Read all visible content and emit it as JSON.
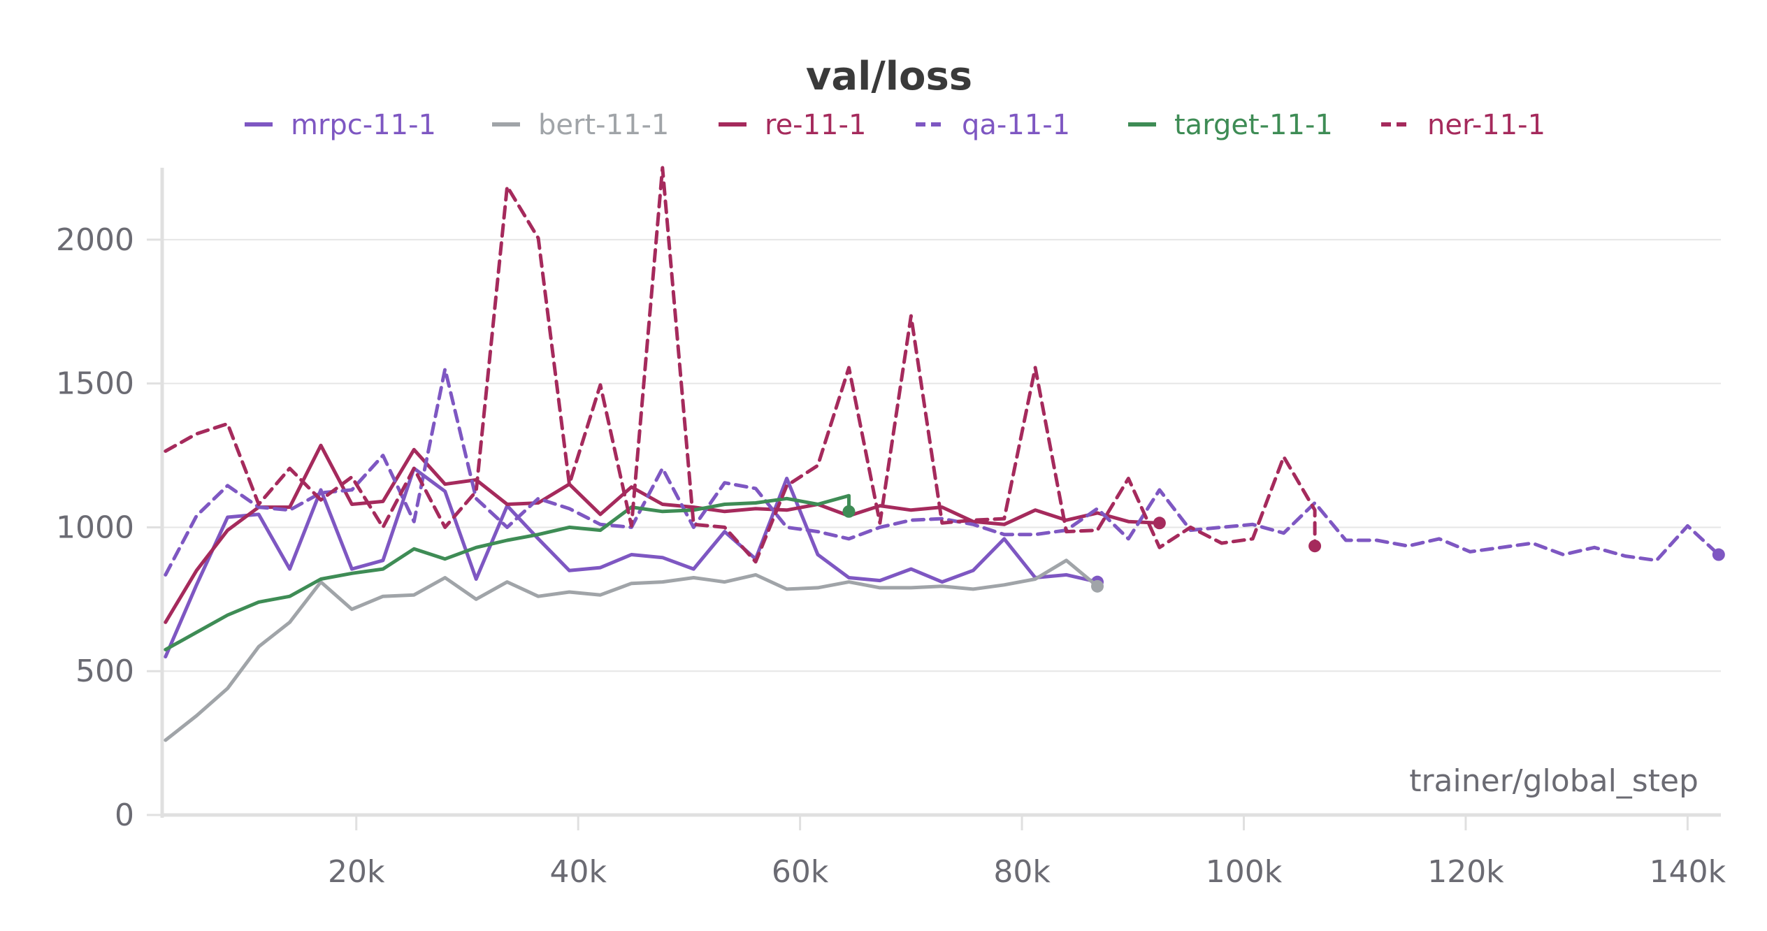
{
  "chart_data": {
    "type": "line",
    "title": "val/loss",
    "xlabel": "trainer/global_step",
    "ylabel": "",
    "xlim": [
      2500,
      143000
    ],
    "ylim": [
      0,
      2250
    ],
    "x_ticks": [
      {
        "value": 20000,
        "label": "20k"
      },
      {
        "value": 40000,
        "label": "40k"
      },
      {
        "value": 60000,
        "label": "60k"
      },
      {
        "value": 80000,
        "label": "80k"
      },
      {
        "value": 100000,
        "label": "100k"
      },
      {
        "value": 120000,
        "label": "120k"
      },
      {
        "value": 140000,
        "label": "140k"
      }
    ],
    "y_ticks": [
      {
        "value": 0,
        "label": "0"
      },
      {
        "value": 500,
        "label": "500"
      },
      {
        "value": 1000,
        "label": "1000"
      },
      {
        "value": 1500,
        "label": "1500"
      },
      {
        "value": 2000,
        "label": "2000"
      }
    ],
    "grid": true,
    "legend": "top",
    "series": [
      {
        "name": "mrpc-11-1",
        "color": "#7e57c2",
        "dash": false,
        "points": [
          [
            2800,
            550
          ],
          [
            5600,
            800
          ],
          [
            8400,
            1035
          ],
          [
            11200,
            1045
          ],
          [
            14000,
            855
          ],
          [
            16800,
            1130
          ],
          [
            19600,
            855
          ],
          [
            22400,
            885
          ],
          [
            25200,
            1205
          ],
          [
            28000,
            1125
          ],
          [
            30800,
            820
          ],
          [
            33600,
            1075
          ],
          [
            36400,
            960
          ],
          [
            39200,
            850
          ],
          [
            42000,
            860
          ],
          [
            44800,
            905
          ],
          [
            47600,
            895
          ],
          [
            50400,
            855
          ],
          [
            53200,
            985
          ],
          [
            56000,
            890
          ],
          [
            58800,
            1170
          ],
          [
            61600,
            905
          ],
          [
            64400,
            825
          ],
          [
            67200,
            815
          ],
          [
            70000,
            855
          ],
          [
            72800,
            810
          ],
          [
            75600,
            850
          ],
          [
            78400,
            960
          ],
          [
            81200,
            825
          ],
          [
            84000,
            835
          ],
          [
            86800,
            810
          ]
        ]
      },
      {
        "name": "bert-11-1",
        "color": "#a0a4a8",
        "dash": false,
        "points": [
          [
            2800,
            260
          ],
          [
            5600,
            345
          ],
          [
            8400,
            440
          ],
          [
            11200,
            585
          ],
          [
            14000,
            670
          ],
          [
            16800,
            810
          ],
          [
            19600,
            715
          ],
          [
            22400,
            760
          ],
          [
            25200,
            765
          ],
          [
            28000,
            825
          ],
          [
            30800,
            750
          ],
          [
            33600,
            810
          ],
          [
            36400,
            760
          ],
          [
            39200,
            775
          ],
          [
            42000,
            765
          ],
          [
            44800,
            805
          ],
          [
            47600,
            810
          ],
          [
            50400,
            825
          ],
          [
            53200,
            810
          ],
          [
            56000,
            835
          ],
          [
            58800,
            785
          ],
          [
            61600,
            790
          ],
          [
            64400,
            810
          ],
          [
            67200,
            790
          ],
          [
            70000,
            790
          ],
          [
            72800,
            795
          ],
          [
            75600,
            785
          ],
          [
            78400,
            800
          ],
          [
            81200,
            820
          ],
          [
            84000,
            885
          ],
          [
            86800,
            795
          ]
        ]
      },
      {
        "name": "re-11-1",
        "color": "#a52a5c",
        "dash": false,
        "points": [
          [
            2800,
            670
          ],
          [
            5600,
            850
          ],
          [
            8400,
            990
          ],
          [
            11200,
            1070
          ],
          [
            14000,
            1070
          ],
          [
            16800,
            1285
          ],
          [
            19600,
            1080
          ],
          [
            22400,
            1090
          ],
          [
            25200,
            1270
          ],
          [
            28000,
            1150
          ],
          [
            30800,
            1165
          ],
          [
            33600,
            1080
          ],
          [
            36400,
            1085
          ],
          [
            39200,
            1150
          ],
          [
            42000,
            1045
          ],
          [
            44800,
            1140
          ],
          [
            47600,
            1080
          ],
          [
            50400,
            1070
          ],
          [
            53200,
            1055
          ],
          [
            56000,
            1065
          ],
          [
            58800,
            1060
          ],
          [
            61600,
            1080
          ],
          [
            64400,
            1040
          ],
          [
            67200,
            1075
          ],
          [
            70000,
            1060
          ],
          [
            72800,
            1070
          ],
          [
            75600,
            1020
          ],
          [
            78400,
            1010
          ],
          [
            81200,
            1060
          ],
          [
            84000,
            1025
          ],
          [
            86800,
            1050
          ],
          [
            89600,
            1020
          ],
          [
            92400,
            1015
          ]
        ]
      },
      {
        "name": "qa-11-1",
        "color": "#7e57c2",
        "dash": true,
        "points": [
          [
            2800,
            835
          ],
          [
            5600,
            1040
          ],
          [
            8400,
            1145
          ],
          [
            11200,
            1070
          ],
          [
            14000,
            1060
          ],
          [
            16800,
            1120
          ],
          [
            19600,
            1130
          ],
          [
            22400,
            1250
          ],
          [
            25200,
            1020
          ],
          [
            28000,
            1550
          ],
          [
            30800,
            1100
          ],
          [
            33600,
            1000
          ],
          [
            36400,
            1100
          ],
          [
            39200,
            1065
          ],
          [
            42000,
            1010
          ],
          [
            44800,
            1000
          ],
          [
            47600,
            1205
          ],
          [
            50400,
            1000
          ],
          [
            53200,
            1155
          ],
          [
            56000,
            1135
          ],
          [
            58800,
            1000
          ],
          [
            61600,
            985
          ],
          [
            64400,
            960
          ],
          [
            67200,
            1000
          ],
          [
            70000,
            1025
          ],
          [
            72800,
            1030
          ],
          [
            75600,
            1010
          ],
          [
            78400,
            975
          ],
          [
            81200,
            975
          ],
          [
            84000,
            990
          ],
          [
            86800,
            1065
          ],
          [
            89600,
            960
          ],
          [
            92400,
            1130
          ],
          [
            95200,
            990
          ],
          [
            98000,
            1000
          ],
          [
            100800,
            1010
          ],
          [
            103600,
            980
          ],
          [
            106400,
            1085
          ],
          [
            109200,
            955
          ],
          [
            112000,
            955
          ],
          [
            114800,
            935
          ],
          [
            117600,
            960
          ],
          [
            120400,
            915
          ],
          [
            123200,
            930
          ],
          [
            126000,
            945
          ],
          [
            128800,
            905
          ],
          [
            131600,
            930
          ],
          [
            134400,
            900
          ],
          [
            137200,
            885
          ],
          [
            140000,
            1005
          ],
          [
            142800,
            905
          ]
        ]
      },
      {
        "name": "target-11-1",
        "color": "#3e8c55",
        "dash": false,
        "points": [
          [
            2800,
            575
          ],
          [
            5600,
            635
          ],
          [
            8400,
            695
          ],
          [
            11200,
            740
          ],
          [
            14000,
            760
          ],
          [
            16800,
            820
          ],
          [
            19600,
            840
          ],
          [
            22400,
            855
          ],
          [
            25200,
            925
          ],
          [
            28000,
            890
          ],
          [
            30800,
            930
          ],
          [
            33600,
            955
          ],
          [
            36400,
            975
          ],
          [
            39200,
            1000
          ],
          [
            42000,
            990
          ],
          [
            44800,
            1070
          ],
          [
            47600,
            1055
          ],
          [
            50400,
            1060
          ],
          [
            53200,
            1080
          ],
          [
            56000,
            1085
          ],
          [
            58800,
            1100
          ],
          [
            61600,
            1080
          ],
          [
            64400,
            1110
          ],
          [
            64400,
            1055
          ]
        ]
      },
      {
        "name": "ner-11-1",
        "color": "#a52a5c",
        "dash": true,
        "points": [
          [
            2800,
            1265
          ],
          [
            5600,
            1325
          ],
          [
            8400,
            1360
          ],
          [
            11200,
            1080
          ],
          [
            14000,
            1205
          ],
          [
            16800,
            1095
          ],
          [
            19600,
            1175
          ],
          [
            22400,
            1000
          ],
          [
            25200,
            1205
          ],
          [
            28000,
            1000
          ],
          [
            30800,
            1125
          ],
          [
            33600,
            2185
          ],
          [
            36400,
            2005
          ],
          [
            39200,
            1150
          ],
          [
            42000,
            1495
          ],
          [
            44800,
            1005
          ],
          [
            47600,
            2250
          ],
          [
            50400,
            1010
          ],
          [
            53200,
            1000
          ],
          [
            56000,
            880
          ],
          [
            58800,
            1145
          ],
          [
            61600,
            1215
          ],
          [
            64400,
            1555
          ],
          [
            67200,
            1015
          ],
          [
            70000,
            1735
          ],
          [
            72800,
            1015
          ],
          [
            75600,
            1025
          ],
          [
            78400,
            1030
          ],
          [
            81200,
            1555
          ],
          [
            84000,
            985
          ],
          [
            86800,
            990
          ],
          [
            89600,
            1170
          ],
          [
            92400,
            930
          ],
          [
            95200,
            1000
          ],
          [
            98000,
            945
          ],
          [
            100800,
            960
          ],
          [
            103600,
            1245
          ],
          [
            106400,
            1060
          ],
          [
            106400,
            935
          ]
        ]
      }
    ]
  }
}
